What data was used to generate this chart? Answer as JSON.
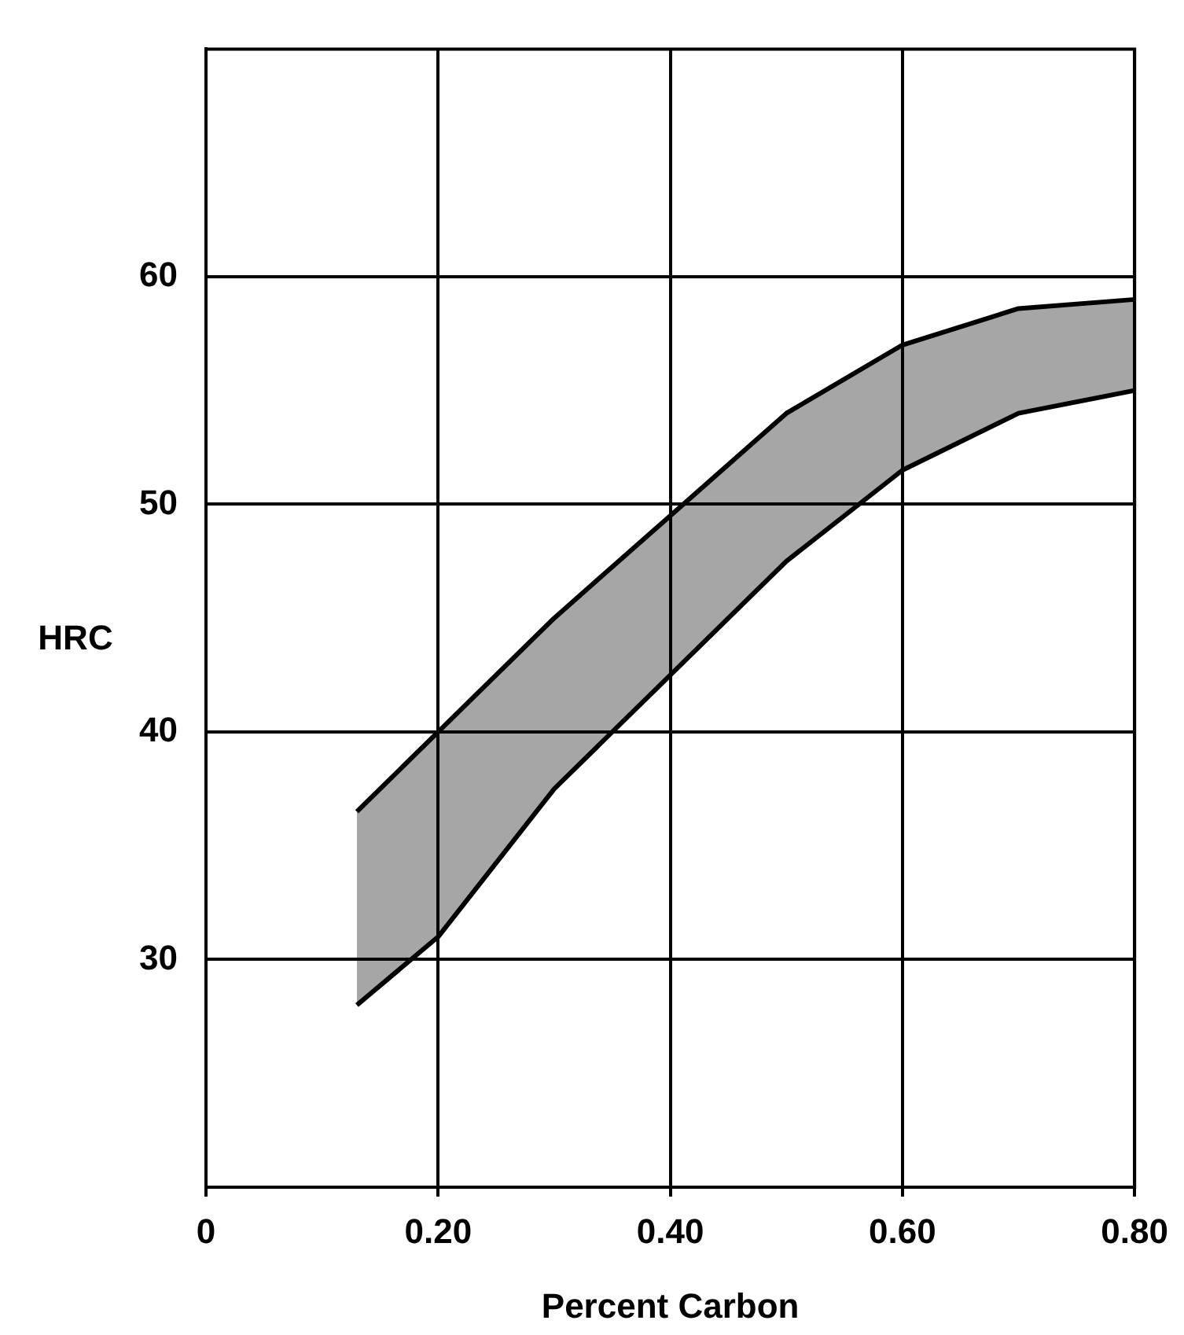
{
  "chart_data": {
    "type": "line",
    "xlabel": "Percent Carbon",
    "ylabel": "HRC",
    "xlim": [
      0,
      0.8
    ],
    "ylim": [
      20,
      70
    ],
    "xticks": [
      0,
      {
        "value": 0.2,
        "label": "0.20"
      },
      {
        "value": 0.4,
        "label": "0.40"
      },
      {
        "value": 0.6,
        "label": "0.60"
      },
      {
        "value": 0.8,
        "label": "0.80"
      }
    ],
    "yticks": [
      30,
      40,
      50,
      60
    ],
    "grid": true,
    "marker": "none",
    "series": [
      {
        "type": "line",
        "color": "#000000",
        "x": [
          0.13,
          0.2,
          0.3,
          0.4,
          0.5,
          0.6,
          0.7,
          0.8
        ],
        "values": [
          36.5,
          40,
          45,
          49.5,
          54,
          57,
          58.6,
          59
        ],
        "lower": [
          28,
          31,
          37.5,
          42.5,
          47.5,
          51.5,
          54,
          55
        ],
        "upper": [
          36.5,
          40,
          45,
          49.5,
          54,
          57,
          58.6,
          59
        ]
      },
      {
        "type": "line",
        "color": "#000000",
        "x": [
          0.13,
          0.2,
          0.3,
          0.4,
          0.5,
          0.6,
          0.7,
          0.8
        ],
        "values": [
          28,
          31,
          37.5,
          42.5,
          47.5,
          51.5,
          54,
          55
        ]
      }
    ]
  }
}
